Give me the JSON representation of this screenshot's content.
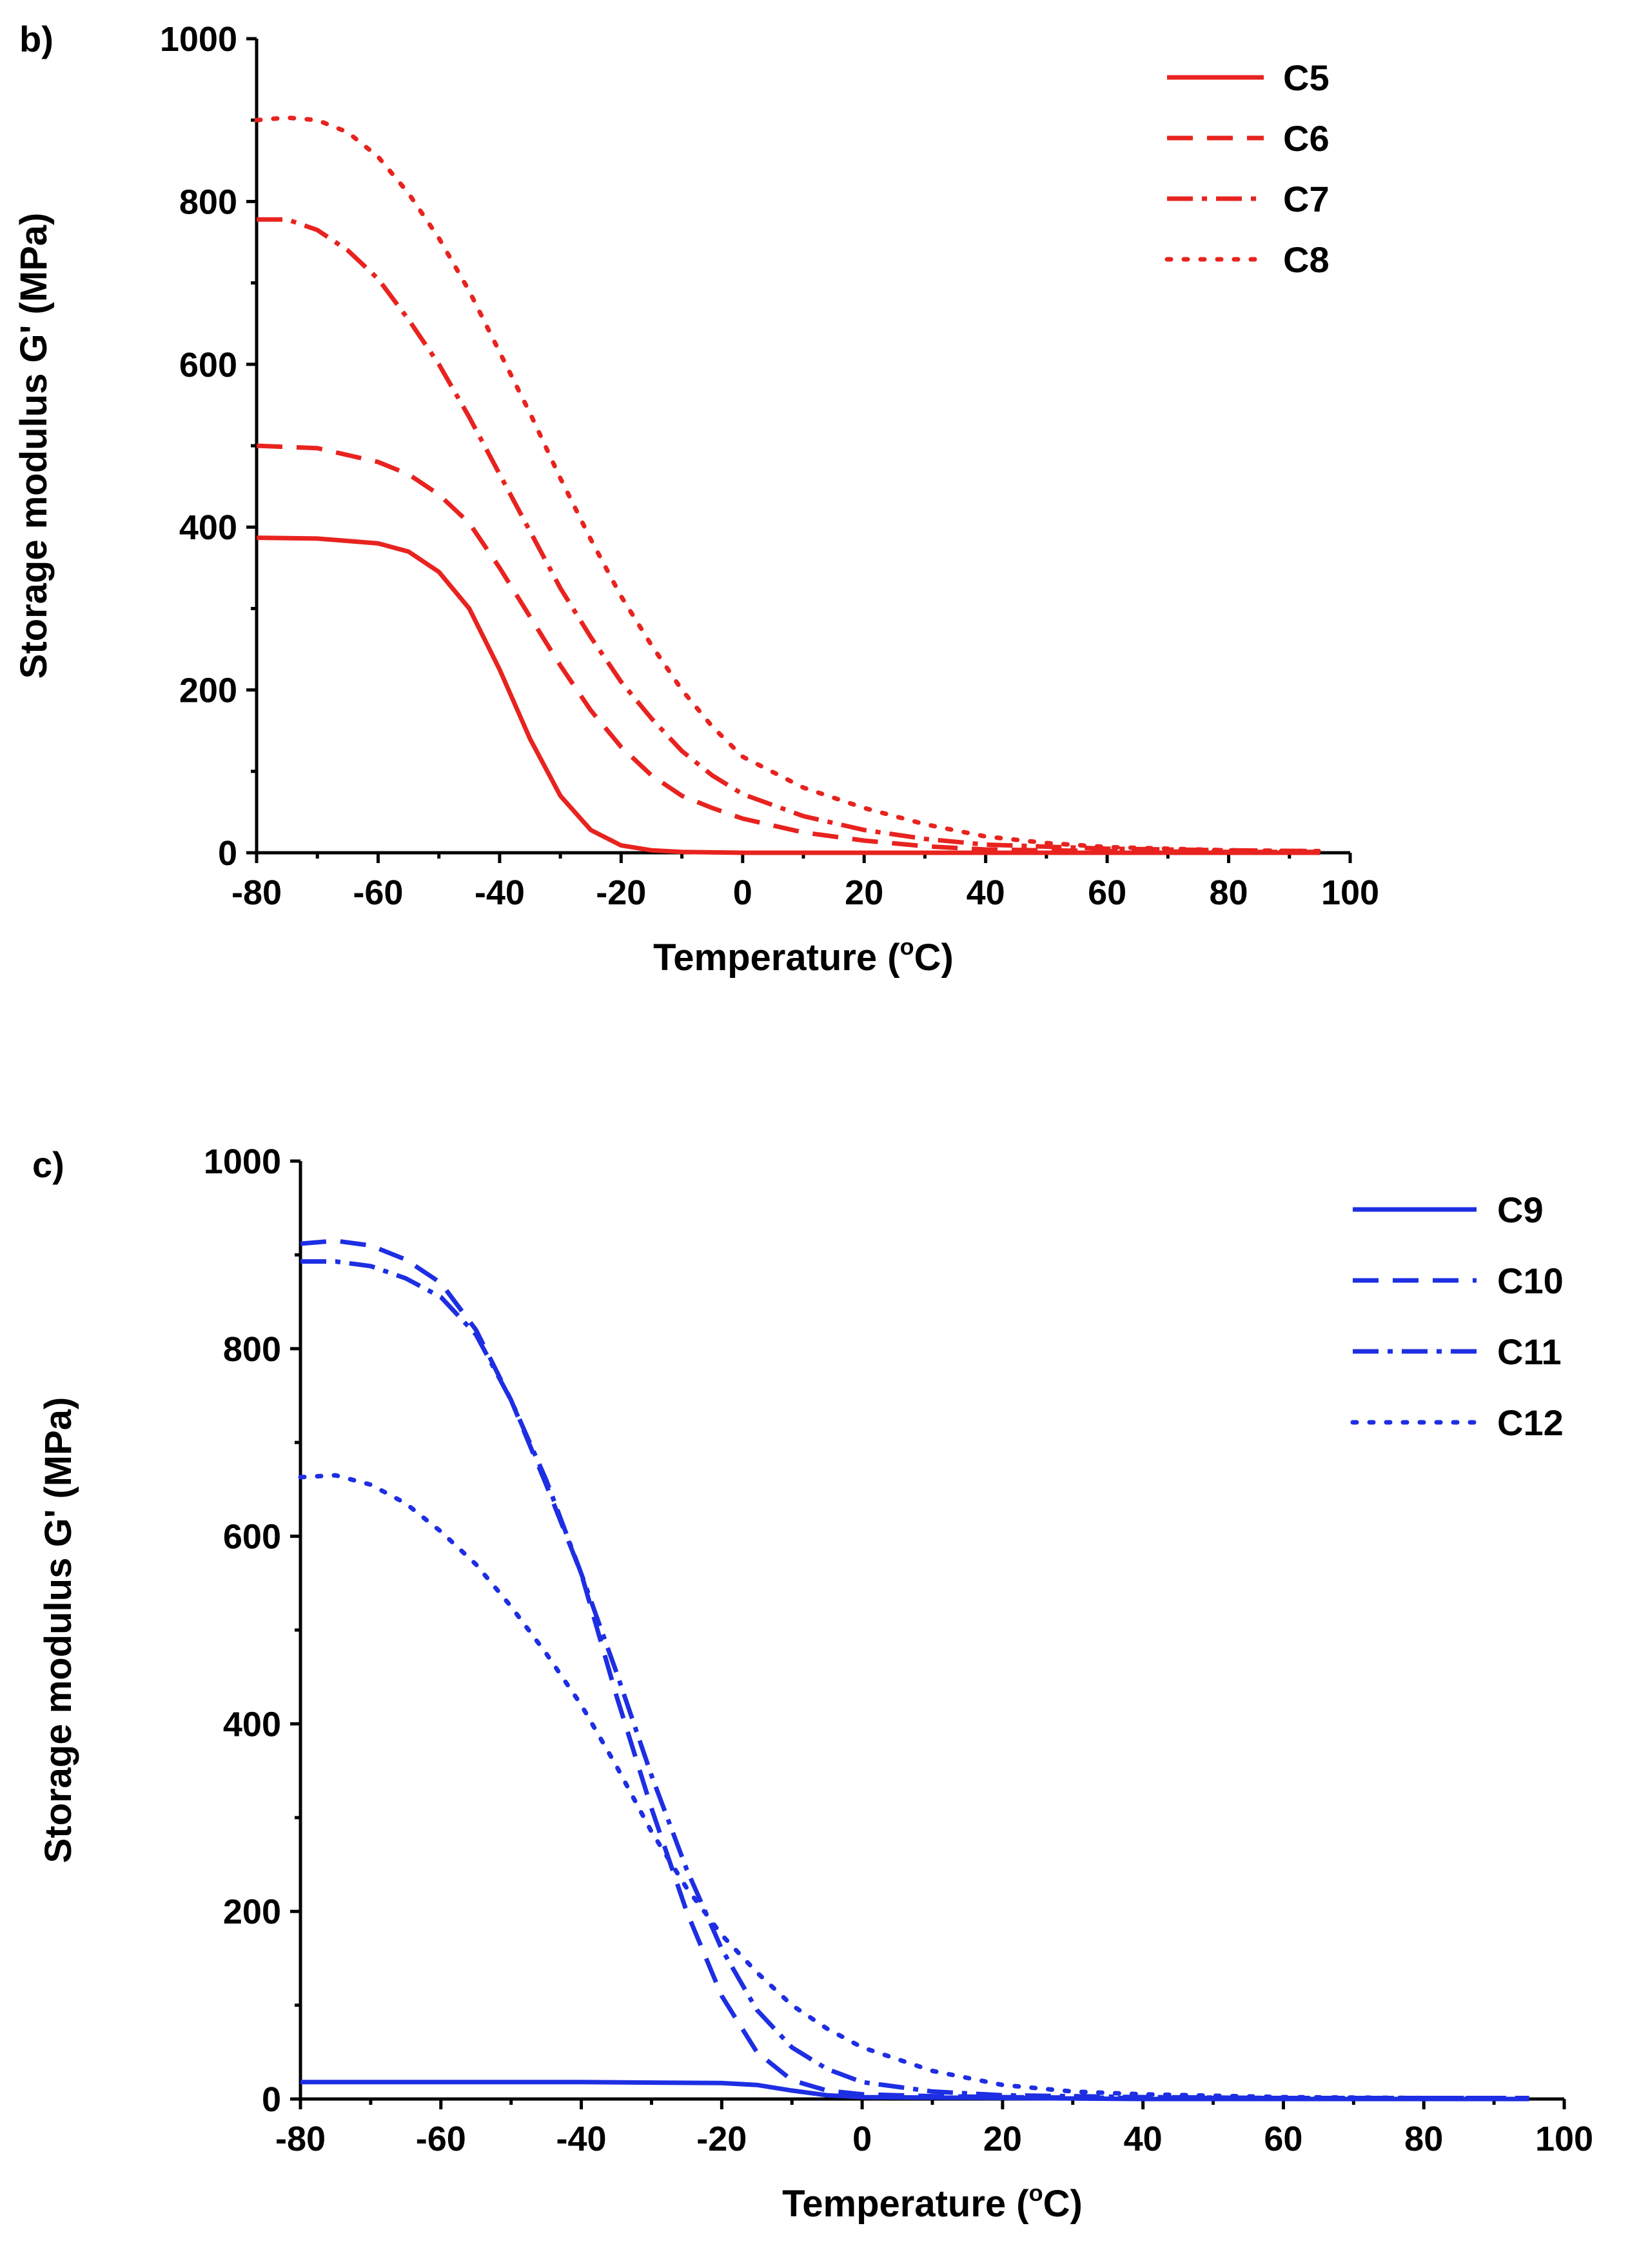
{
  "chart_data": [
    {
      "type": "line",
      "panel_label": "b)",
      "xlabel": "Temperature (",
      "xlabel_unit_sup": "o",
      "xlabel_unit": "C)",
      "ylabel": "Storage modulus G' (MPa)",
      "xlim": [
        -80,
        100
      ],
      "ylim": [
        0,
        1000
      ],
      "xticks": [
        "-80",
        "-60",
        "-40",
        "-20",
        "0",
        "20",
        "40",
        "60",
        "80",
        "100"
      ],
      "yticks": [
        "0",
        "200",
        "400",
        "600",
        "800",
        "1000"
      ],
      "legend_position": "top-right",
      "series": [
        {
          "name": "C5",
          "color": "#e8231f",
          "dash": "solid",
          "x": [
            -80,
            -70,
            -60,
            -55,
            -50,
            -45,
            -40,
            -35,
            -30,
            -25,
            -20,
            -15,
            -10,
            0,
            20,
            40,
            60,
            80,
            95
          ],
          "y": [
            387,
            386,
            380,
            370,
            345,
            300,
            225,
            140,
            70,
            28,
            9,
            3,
            1,
            0,
            0,
            0,
            0,
            0,
            0
          ]
        },
        {
          "name": "C6",
          "color": "#e8231f",
          "dash": "dashed",
          "x": [
            -80,
            -70,
            -60,
            -55,
            -50,
            -45,
            -40,
            -35,
            -30,
            -25,
            -20,
            -15,
            -10,
            -5,
            0,
            10,
            20,
            30,
            40,
            60,
            80,
            95
          ],
          "y": [
            500,
            497,
            480,
            465,
            440,
            405,
            350,
            290,
            230,
            175,
            130,
            95,
            70,
            55,
            42,
            25,
            15,
            8,
            4,
            2,
            1,
            1
          ]
        },
        {
          "name": "C7",
          "color": "#e8231f",
          "dash": "dashdot",
          "x": [
            -80,
            -75,
            -70,
            -65,
            -60,
            -55,
            -50,
            -45,
            -40,
            -35,
            -30,
            -25,
            -20,
            -15,
            -10,
            -5,
            0,
            10,
            20,
            30,
            40,
            60,
            80,
            95
          ],
          "y": [
            778,
            778,
            765,
            740,
            705,
            655,
            600,
            535,
            465,
            395,
            325,
            265,
            210,
            165,
            125,
            95,
            72,
            45,
            28,
            17,
            10,
            5,
            3,
            2
          ]
        },
        {
          "name": "C8",
          "color": "#e8231f",
          "dash": "dotted",
          "x": [
            -80,
            -75,
            -70,
            -65,
            -60,
            -55,
            -50,
            -45,
            -40,
            -35,
            -30,
            -25,
            -20,
            -15,
            -10,
            -5,
            0,
            10,
            20,
            30,
            40,
            50,
            60,
            80,
            95
          ],
          "y": [
            900,
            903,
            900,
            885,
            855,
            810,
            755,
            690,
            615,
            540,
            460,
            385,
            315,
            255,
            200,
            155,
            118,
            80,
            55,
            35,
            20,
            12,
            7,
            3,
            2
          ]
        }
      ]
    },
    {
      "type": "line",
      "panel_label": "c)",
      "xlabel": "Temperature (",
      "xlabel_unit_sup": "o",
      "xlabel_unit": "C)",
      "ylabel": "Storage modulus G' (MPa)",
      "xlim": [
        -80,
        100
      ],
      "ylim": [
        0,
        1000
      ],
      "xticks": [
        "-80",
        "-60",
        "-40",
        "-20",
        "0",
        "20",
        "40",
        "60",
        "80",
        "100"
      ],
      "yticks": [
        "0",
        "200",
        "400",
        "600",
        "800",
        "1000"
      ],
      "legend_position": "top-right",
      "series": [
        {
          "name": "C9",
          "color": "#1d2ee3",
          "dash": "solid",
          "x": [
            -80,
            -40,
            -20,
            -15,
            -10,
            -5,
            0,
            20,
            40,
            60,
            80,
            95
          ],
          "y": [
            18,
            18,
            17,
            15,
            9,
            4,
            2,
            1,
            0,
            0,
            0,
            0
          ]
        },
        {
          "name": "C10",
          "color": "#1d2ee3",
          "dash": "dashed",
          "x": [
            -80,
            -75,
            -70,
            -65,
            -60,
            -55,
            -50,
            -45,
            -40,
            -35,
            -30,
            -25,
            -20,
            -15,
            -10,
            -5,
            0,
            10,
            20,
            40,
            60,
            80,
            95
          ],
          "y": [
            912,
            915,
            910,
            895,
            870,
            820,
            745,
            655,
            560,
            430,
            310,
            200,
            110,
            50,
            20,
            9,
            5,
            3,
            2,
            1,
            1,
            1,
            1
          ]
        },
        {
          "name": "C11",
          "color": "#1d2ee3",
          "dash": "dashdot",
          "x": [
            -80,
            -75,
            -70,
            -65,
            -60,
            -55,
            -50,
            -45,
            -40,
            -35,
            -30,
            -25,
            -20,
            -15,
            -10,
            -5,
            0,
            10,
            20,
            40,
            60,
            80,
            95
          ],
          "y": [
            893,
            893,
            888,
            875,
            855,
            815,
            745,
            660,
            560,
            455,
            345,
            245,
            160,
            95,
            55,
            32,
            18,
            8,
            4,
            2,
            1,
            1,
            1
          ]
        },
        {
          "name": "C12",
          "color": "#1d2ee3",
          "dash": "dotted",
          "x": [
            -80,
            -75,
            -70,
            -65,
            -60,
            -55,
            -50,
            -45,
            -40,
            -35,
            -30,
            -25,
            -20,
            -15,
            -10,
            -5,
            0,
            10,
            20,
            30,
            40,
            60,
            80,
            95
          ],
          "y": [
            663,
            665,
            655,
            635,
            605,
            570,
            525,
            475,
            420,
            355,
            285,
            225,
            175,
            135,
            100,
            75,
            55,
            30,
            15,
            8,
            5,
            2,
            1,
            1
          ]
        }
      ]
    }
  ]
}
